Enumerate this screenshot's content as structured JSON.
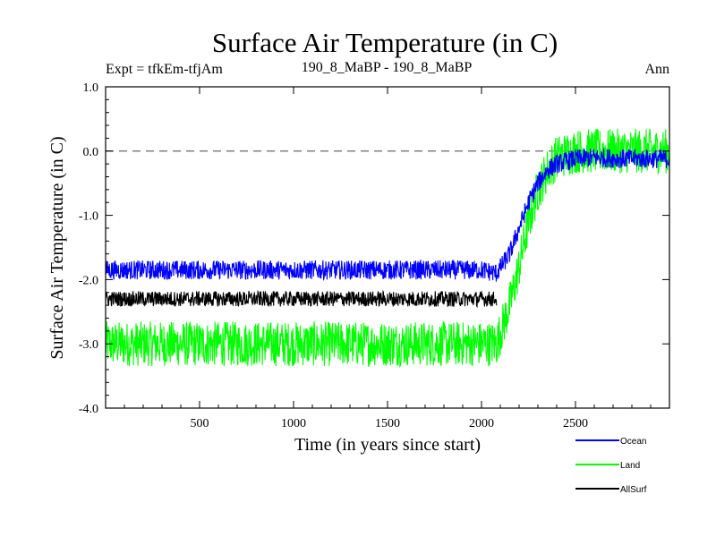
{
  "chart_data": {
    "type": "line",
    "title": "Surface Air Temperature (in C)",
    "subtitle_left": "Expt = tfkEm-tfjAm",
    "subtitle_center": "190_8_MaBP - 190_8_MaBP",
    "subtitle_right": "Ann",
    "xlabel": "Time (in years since start)",
    "ylabel": "Surface Air Temperature (in C)",
    "xlim": [
      0,
      3000
    ],
    "ylim": [
      -4.0,
      1.0
    ],
    "x_ticks": [
      500,
      1000,
      1500,
      2000,
      2500
    ],
    "x_tick_labels": [
      "500",
      "1000",
      "1500",
      "2000",
      "2500"
    ],
    "y_ticks": [
      1.0,
      0.0,
      -1.0,
      -2.0,
      -3.0,
      -4.0
    ],
    "y_tick_labels": [
      "1.0",
      "0.0",
      "-1.0",
      "-2.0",
      "-3.0",
      "-4.0"
    ],
    "reference_line": {
      "y": 0.0,
      "style": "dashed",
      "color": "#808080"
    },
    "legend_placement": "bottom-right, outside plot",
    "series": [
      {
        "name": "Ocean",
        "color": "#0000ff",
        "x": [
          0,
          250,
          500,
          750,
          1000,
          1250,
          1500,
          1750,
          2000,
          2080,
          2150,
          2200,
          2250,
          2300,
          2350,
          2400,
          2500,
          2600,
          2750,
          3000
        ],
        "values": [
          -1.85,
          -1.85,
          -1.85,
          -1.85,
          -1.85,
          -1.85,
          -1.85,
          -1.85,
          -1.85,
          -1.9,
          -1.6,
          -1.2,
          -0.8,
          -0.5,
          -0.3,
          -0.2,
          -0.12,
          -0.1,
          -0.12,
          -0.12
        ],
        "noise_amplitude": 0.15
      },
      {
        "name": "Land",
        "color": "#00ff00",
        "x": [
          0,
          250,
          500,
          750,
          1000,
          1250,
          1500,
          1750,
          2000,
          2080,
          2150,
          2200,
          2250,
          2300,
          2350,
          2400,
          2500,
          2600,
          2750,
          3000
        ],
        "values": [
          -3.0,
          -3.0,
          -3.0,
          -3.0,
          -3.0,
          -3.0,
          -3.0,
          -3.0,
          -3.0,
          -3.0,
          -2.4,
          -1.8,
          -1.1,
          -0.6,
          -0.3,
          -0.1,
          0.0,
          0.0,
          0.0,
          0.0
        ],
        "noise_amplitude": 0.35
      },
      {
        "name": "AllSurf",
        "color": "#000000",
        "x": [
          0,
          250,
          500,
          750,
          1000,
          1250,
          1500,
          1750,
          2000,
          2080
        ],
        "values": [
          -2.3,
          -2.3,
          -2.3,
          -2.3,
          -2.3,
          -2.3,
          -2.3,
          -2.3,
          -2.3,
          -2.3
        ],
        "noise_amplitude": 0.12
      }
    ]
  }
}
